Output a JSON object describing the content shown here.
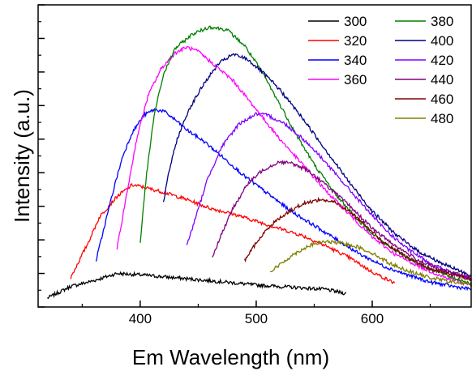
{
  "chart_data": {
    "type": "line",
    "title": "",
    "xlabel": "Em Wavelength (nm)",
    "ylabel": "Intensity (a.u.)",
    "xlim": [
      312,
      686
    ],
    "ylim": [
      0,
      1
    ],
    "y_tick_labels_shown": false,
    "x_ticks": [
      400,
      500,
      600
    ],
    "x_minor_step": 50,
    "grid": false,
    "legend_position": "top-right, two columns, no frame",
    "series": [
      {
        "name": "300",
        "color": "#000000",
        "points": [
          [
            320,
            0.01
          ],
          [
            340,
            0.05
          ],
          [
            360,
            0.07
          ],
          [
            380,
            0.095
          ],
          [
            400,
            0.09
          ],
          [
            430,
            0.08
          ],
          [
            460,
            0.07
          ],
          [
            500,
            0.055
          ],
          [
            540,
            0.045
          ],
          [
            560,
            0.04
          ],
          [
            578,
            0.025
          ]
        ]
      },
      {
        "name": "320",
        "color": "#ff0000",
        "points": [
          [
            340,
            0.08
          ],
          [
            355,
            0.2
          ],
          [
            365,
            0.29
          ],
          [
            380,
            0.36
          ],
          [
            393,
            0.4
          ],
          [
            400,
            0.395
          ],
          [
            420,
            0.375
          ],
          [
            440,
            0.35
          ],
          [
            460,
            0.32
          ],
          [
            480,
            0.3
          ],
          [
            500,
            0.275
          ],
          [
            520,
            0.25
          ],
          [
            540,
            0.225
          ],
          [
            560,
            0.19
          ],
          [
            580,
            0.15
          ],
          [
            600,
            0.1
          ],
          [
            620,
            0.06
          ]
        ]
      },
      {
        "name": "340",
        "color": "#0000ff",
        "points": [
          [
            362,
            0.14
          ],
          [
            370,
            0.27
          ],
          [
            378,
            0.4
          ],
          [
            385,
            0.5
          ],
          [
            393,
            0.58
          ],
          [
            403,
            0.64
          ],
          [
            412,
            0.66
          ],
          [
            420,
            0.655
          ],
          [
            430,
            0.625
          ],
          [
            440,
            0.59
          ],
          [
            455,
            0.55
          ],
          [
            470,
            0.5
          ],
          [
            490,
            0.43
          ],
          [
            510,
            0.37
          ],
          [
            530,
            0.31
          ],
          [
            550,
            0.26
          ],
          [
            570,
            0.21
          ],
          [
            590,
            0.16
          ],
          [
            610,
            0.12
          ],
          [
            630,
            0.09
          ],
          [
            650,
            0.065
          ],
          [
            670,
            0.05
          ],
          [
            686,
            0.04
          ]
        ]
      },
      {
        "name": "360",
        "color": "#ff00ff",
        "points": [
          [
            380,
            0.18
          ],
          [
            388,
            0.36
          ],
          [
            397,
            0.56
          ],
          [
            407,
            0.71
          ],
          [
            418,
            0.8
          ],
          [
            430,
            0.855
          ],
          [
            440,
            0.875
          ],
          [
            450,
            0.86
          ],
          [
            465,
            0.81
          ],
          [
            480,
            0.76
          ],
          [
            500,
            0.66
          ],
          [
            520,
            0.56
          ],
          [
            540,
            0.47
          ],
          [
            560,
            0.38
          ],
          [
            580,
            0.3
          ],
          [
            600,
            0.22
          ],
          [
            620,
            0.16
          ],
          [
            640,
            0.12
          ],
          [
            660,
            0.085
          ],
          [
            686,
            0.055
          ]
        ]
      },
      {
        "name": "380",
        "color": "#008000",
        "points": [
          [
            400,
            0.2
          ],
          [
            405,
            0.42
          ],
          [
            412,
            0.64
          ],
          [
            420,
            0.78
          ],
          [
            430,
            0.87
          ],
          [
            445,
            0.92
          ],
          [
            460,
            0.945
          ],
          [
            475,
            0.935
          ],
          [
            490,
            0.88
          ],
          [
            505,
            0.79
          ],
          [
            520,
            0.68
          ],
          [
            535,
            0.57
          ],
          [
            550,
            0.47
          ],
          [
            570,
            0.36
          ],
          [
            590,
            0.27
          ],
          [
            610,
            0.2
          ],
          [
            630,
            0.15
          ],
          [
            650,
            0.11
          ],
          [
            670,
            0.08
          ],
          [
            686,
            0.06
          ]
        ]
      },
      {
        "name": "400",
        "color": "#000080",
        "points": [
          [
            420,
            0.34
          ],
          [
            425,
            0.45
          ],
          [
            432,
            0.56
          ],
          [
            442,
            0.66
          ],
          [
            455,
            0.75
          ],
          [
            468,
            0.82
          ],
          [
            480,
            0.85
          ],
          [
            492,
            0.835
          ],
          [
            505,
            0.79
          ],
          [
            520,
            0.73
          ],
          [
            540,
            0.63
          ],
          [
            560,
            0.52
          ],
          [
            580,
            0.41
          ],
          [
            600,
            0.31
          ],
          [
            620,
            0.23
          ],
          [
            640,
            0.17
          ],
          [
            660,
            0.13
          ],
          [
            686,
            0.085
          ]
        ]
      },
      {
        "name": "420",
        "color": "#8000ff",
        "points": [
          [
            440,
            0.19
          ],
          [
            448,
            0.29
          ],
          [
            458,
            0.42
          ],
          [
            470,
            0.53
          ],
          [
            485,
            0.61
          ],
          [
            500,
            0.645
          ],
          [
            510,
            0.64
          ],
          [
            525,
            0.61
          ],
          [
            540,
            0.56
          ],
          [
            555,
            0.5
          ],
          [
            570,
            0.43
          ],
          [
            590,
            0.34
          ],
          [
            610,
            0.25
          ],
          [
            630,
            0.18
          ],
          [
            650,
            0.13
          ],
          [
            670,
            0.095
          ],
          [
            686,
            0.075
          ]
        ]
      },
      {
        "name": "440",
        "color": "#800080",
        "points": [
          [
            462,
            0.15
          ],
          [
            470,
            0.23
          ],
          [
            480,
            0.32
          ],
          [
            492,
            0.4
          ],
          [
            505,
            0.45
          ],
          [
            520,
            0.48
          ],
          [
            530,
            0.475
          ],
          [
            545,
            0.45
          ],
          [
            560,
            0.4
          ],
          [
            580,
            0.33
          ],
          [
            600,
            0.25
          ],
          [
            620,
            0.19
          ],
          [
            640,
            0.14
          ],
          [
            660,
            0.105
          ],
          [
            686,
            0.08
          ]
        ]
      },
      {
        "name": "460",
        "color": "#800000",
        "points": [
          [
            490,
            0.14
          ],
          [
            500,
            0.2
          ],
          [
            512,
            0.26
          ],
          [
            525,
            0.3
          ],
          [
            540,
            0.335
          ],
          [
            555,
            0.35
          ],
          [
            568,
            0.34
          ],
          [
            580,
            0.31
          ],
          [
            595,
            0.26
          ],
          [
            610,
            0.2
          ],
          [
            630,
            0.15
          ],
          [
            650,
            0.11
          ],
          [
            670,
            0.09
          ],
          [
            686,
            0.075
          ]
        ]
      },
      {
        "name": "480",
        "color": "#808000",
        "points": [
          [
            512,
            0.1
          ],
          [
            522,
            0.13
          ],
          [
            532,
            0.16
          ],
          [
            545,
            0.19
          ],
          [
            558,
            0.205
          ],
          [
            572,
            0.2
          ],
          [
            585,
            0.19
          ],
          [
            600,
            0.165
          ],
          [
            615,
            0.13
          ],
          [
            630,
            0.105
          ],
          [
            650,
            0.08
          ],
          [
            670,
            0.065
          ],
          [
            686,
            0.055
          ]
        ]
      }
    ]
  }
}
